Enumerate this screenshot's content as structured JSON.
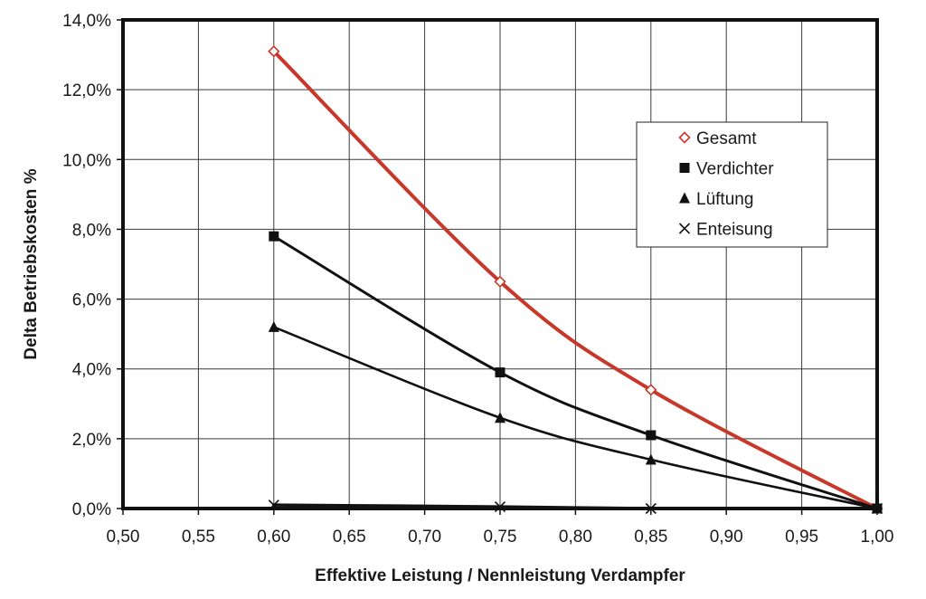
{
  "chart_data": {
    "type": "line",
    "title": "",
    "xlabel": "Effektive Leistung / Nennleistung Verdampfer",
    "ylabel": "Delta Betriebskosten %",
    "xlim": [
      0.5,
      1.0
    ],
    "ylim": [
      0.0,
      14.0
    ],
    "x_ticks": [
      "0,50",
      "0,55",
      "0,60",
      "0,65",
      "0,70",
      "0,75",
      "0,80",
      "0,85",
      "0,90",
      "0,95",
      "1,00"
    ],
    "y_ticks": [
      "0,0%",
      "2,0%",
      "4,0%",
      "6,0%",
      "8,0%",
      "10,0%",
      "12,0%",
      "14,0%"
    ],
    "grid": true,
    "legend_position": "top-right",
    "series": [
      {
        "name": "Gesamt",
        "marker": "diamond-open",
        "color": "#c8382a",
        "x": [
          0.6,
          0.75,
          0.85,
          1.0
        ],
        "values": [
          13.1,
          6.5,
          3.4,
          0.0
        ]
      },
      {
        "name": "Verdichter",
        "marker": "square",
        "color": "#111111",
        "x": [
          0.6,
          0.75,
          0.85,
          1.0
        ],
        "values": [
          7.8,
          3.9,
          2.1,
          0.0
        ]
      },
      {
        "name": "Lüftung",
        "marker": "triangle",
        "color": "#111111",
        "x": [
          0.6,
          0.75,
          0.85,
          1.0
        ],
        "values": [
          5.2,
          2.6,
          1.4,
          0.0
        ]
      },
      {
        "name": "Enteisung",
        "marker": "x",
        "color": "#111111",
        "x": [
          0.6,
          0.75,
          0.85,
          1.0
        ],
        "values": [
          0.1,
          0.05,
          0.0,
          0.0
        ]
      }
    ]
  }
}
